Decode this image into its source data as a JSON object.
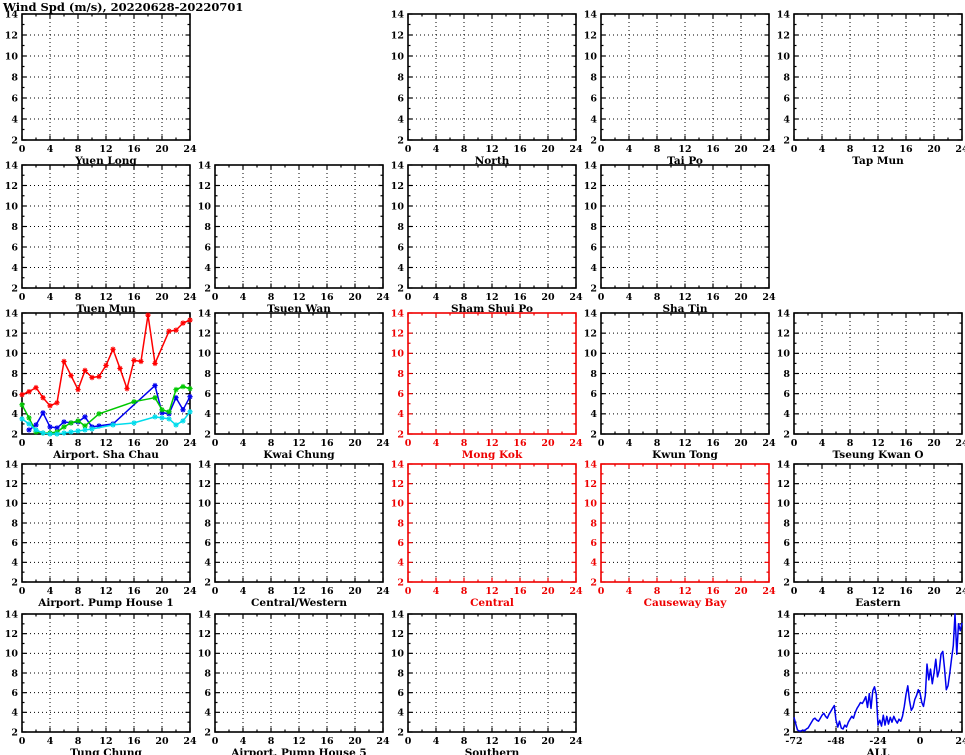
{
  "page_title": "Wind Spd (m/s), 20220628-20220701",
  "colors": {
    "background": "#ffffff",
    "axis_black": "#000000",
    "axis_red": "#ee0000",
    "grid": "#000000",
    "series_red": "#ff0000",
    "series_blue": "#0000ee",
    "series_green": "#00c800",
    "series_cyan": "#00dcec"
  },
  "chart_data": {
    "type": "line",
    "title": "Wind Spd (m/s), 20220628-20220701",
    "ylabel": "Wind Spd (m/s)",
    "date_range": "20220628-20220701",
    "ylim": [
      2,
      14
    ],
    "yticks": [
      2,
      4,
      6,
      8,
      10,
      12,
      14
    ],
    "y_minor_step": 1,
    "grid": "dotted",
    "legend": "none",
    "default_x": {
      "lim": [
        0,
        24
      ],
      "ticks": [
        0,
        4,
        8,
        12,
        16,
        20,
        24
      ],
      "minor_step": 2
    },
    "panels": [
      {
        "title": "Yuen Long",
        "col": 0,
        "row": 0,
        "axis_color": "black",
        "series": []
      },
      {
        "title": "North",
        "col": 2,
        "row": 0,
        "axis_color": "black",
        "series": []
      },
      {
        "title": "Tai Po",
        "col": 3,
        "row": 0,
        "axis_color": "black",
        "series": []
      },
      {
        "title": "Tap Mun",
        "col": 4,
        "row": 0,
        "axis_color": "black",
        "series": []
      },
      {
        "title": "Tuen Mun",
        "col": 0,
        "row": 1,
        "axis_color": "black",
        "series": []
      },
      {
        "title": "Tsuen Wan",
        "col": 1,
        "row": 1,
        "axis_color": "black",
        "series": []
      },
      {
        "title": "Sham Shui Po",
        "col": 2,
        "row": 1,
        "axis_color": "black",
        "series": []
      },
      {
        "title": "Sha Tin",
        "col": 3,
        "row": 1,
        "axis_color": "black",
        "series": []
      },
      {
        "title": "Airport. Sha Chau",
        "col": 0,
        "row": 2,
        "axis_color": "black",
        "series": [
          {
            "name": "red",
            "color_key": "series_red",
            "markers": true,
            "points": [
              [
                0,
                5.9
              ],
              [
                1,
                6.2
              ],
              [
                2,
                6.6
              ],
              [
                3,
                5.6
              ],
              [
                4,
                4.8
              ],
              [
                5,
                5.1
              ],
              [
                6,
                9.2
              ],
              [
                7,
                7.8
              ],
              [
                8,
                6.4
              ],
              [
                9,
                8.3
              ],
              [
                10,
                7.6
              ],
              [
                11,
                7.7
              ],
              [
                12,
                8.8
              ],
              [
                13,
                10.4
              ],
              [
                14,
                8.5
              ],
              [
                15,
                6.5
              ],
              [
                16,
                9.3
              ],
              [
                17,
                9.2
              ],
              [
                18,
                13.8
              ],
              [
                19,
                9.0
              ],
              [
                21,
                12.2
              ],
              [
                22,
                12.3
              ],
              [
                23,
                13.0
              ],
              [
                24,
                13.3
              ]
            ]
          },
          {
            "name": "blue",
            "color_key": "series_blue",
            "markers": true,
            "points": [
              [
                1,
                2.4
              ],
              [
                2,
                2.9
              ],
              [
                3,
                4.1
              ],
              [
                4,
                2.7
              ],
              [
                5,
                2.6
              ],
              [
                6,
                3.2
              ],
              [
                7,
                3.1
              ],
              [
                8,
                3.2
              ],
              [
                9,
                3.7
              ],
              [
                10,
                2.7
              ],
              [
                11,
                2.8
              ],
              [
                13,
                3.0
              ],
              [
                19,
                6.8
              ],
              [
                20,
                4.1
              ],
              [
                21,
                4.0
              ],
              [
                22,
                5.6
              ],
              [
                23,
                4.4
              ],
              [
                24,
                5.7
              ]
            ]
          },
          {
            "name": "green",
            "color_key": "series_green",
            "markers": true,
            "points": [
              [
                0,
                4.9
              ],
              [
                1,
                3.6
              ],
              [
                2,
                2.2
              ],
              [
                3,
                2.1
              ],
              [
                4,
                2.1
              ],
              [
                5,
                2.2
              ],
              [
                6,
                2.7
              ],
              [
                7,
                3.1
              ],
              [
                8,
                3.3
              ],
              [
                9,
                2.8
              ],
              [
                11,
                4.0
              ],
              [
                16,
                5.2
              ],
              [
                19,
                5.6
              ],
              [
                20,
                4.4
              ],
              [
                21,
                4.2
              ],
              [
                22,
                6.4
              ],
              [
                23,
                6.7
              ],
              [
                24,
                6.5
              ]
            ]
          },
          {
            "name": "cyan",
            "color_key": "series_cyan",
            "markers": true,
            "points": [
              [
                0,
                3.5
              ],
              [
                1,
                3.0
              ],
              [
                2,
                2.4
              ],
              [
                3,
                2.1
              ],
              [
                4,
                2.0
              ],
              [
                5,
                2.0
              ],
              [
                6,
                2.1
              ],
              [
                7,
                2.2
              ],
              [
                8,
                2.3
              ],
              [
                9,
                2.4
              ],
              [
                10,
                2.5
              ],
              [
                13,
                2.9
              ],
              [
                16,
                3.1
              ],
              [
                19,
                3.7
              ],
              [
                20,
                3.6
              ],
              [
                21,
                3.5
              ],
              [
                22,
                2.9
              ],
              [
                23,
                3.3
              ],
              [
                24,
                4.2
              ]
            ]
          }
        ]
      },
      {
        "title": "Kwai Chung",
        "col": 1,
        "row": 2,
        "axis_color": "black",
        "series": []
      },
      {
        "title": "Mong Kok",
        "col": 2,
        "row": 2,
        "axis_color": "red",
        "series": []
      },
      {
        "title": "Kwun Tong",
        "col": 3,
        "row": 2,
        "axis_color": "black",
        "series": []
      },
      {
        "title": "Tseung Kwan O",
        "col": 4,
        "row": 2,
        "axis_color": "black",
        "series": []
      },
      {
        "title": "Airport. Pump House 1",
        "col": 0,
        "row": 3,
        "axis_color": "black",
        "series": []
      },
      {
        "title": "Central/Western",
        "col": 1,
        "row": 3,
        "axis_color": "black",
        "series": []
      },
      {
        "title": "Central",
        "col": 2,
        "row": 3,
        "axis_color": "red",
        "series": []
      },
      {
        "title": "Causeway Bay",
        "col": 3,
        "row": 3,
        "axis_color": "red",
        "series": []
      },
      {
        "title": "Eastern",
        "col": 4,
        "row": 3,
        "axis_color": "black",
        "series": []
      },
      {
        "title": "Tung Chung",
        "col": 0,
        "row": 4,
        "axis_color": "black",
        "series": []
      },
      {
        "title": "Airport. Pump House 5",
        "col": 1,
        "row": 4,
        "axis_color": "black",
        "series": []
      },
      {
        "title": "Southern",
        "col": 2,
        "row": 4,
        "axis_color": "black",
        "series": []
      },
      {
        "title": "ALL",
        "col": 4,
        "row": 4,
        "axis_color": "black",
        "x": {
          "lim": [
            -72,
            24
          ],
          "ticks": [
            -72,
            -48,
            -24,
            0,
            24
          ],
          "minor_step": 6
        },
        "series": [
          {
            "name": "blue",
            "color_key": "series_blue",
            "markers": false,
            "points": [
              [
                -72,
                3.5
              ],
              [
                -71,
                2.8
              ],
              [
                -70,
                2.2
              ],
              [
                -69,
                2.1
              ],
              [
                -68,
                2.1
              ],
              [
                -67,
                2.2
              ],
              [
                -66,
                2.1
              ],
              [
                -65,
                2.3
              ],
              [
                -64,
                2.4
              ],
              [
                -63,
                2.7
              ],
              [
                -62,
                3.0
              ],
              [
                -61,
                3.3
              ],
              [
                -60,
                3.4
              ],
              [
                -59,
                3.2
              ],
              [
                -58,
                3.1
              ],
              [
                -57,
                3.4
              ],
              [
                -56,
                3.7
              ],
              [
                -55,
                3.9
              ],
              [
                -54,
                3.6
              ],
              [
                -53,
                3.4
              ],
              [
                -52,
                3.8
              ],
              [
                -51,
                4.1
              ],
              [
                -50,
                4.4
              ],
              [
                -49,
                4.7
              ],
              [
                -48,
                3.2
              ],
              [
                -47,
                2.5
              ],
              [
                -46,
                3.1
              ],
              [
                -45,
                2.4
              ],
              [
                -44,
                2.3
              ],
              [
                -43,
                2.7
              ],
              [
                -42,
                2.5
              ],
              [
                -41,
                3.0
              ],
              [
                -40,
                3.3
              ],
              [
                -39,
                3.6
              ],
              [
                -38,
                3.4
              ],
              [
                -37,
                4.0
              ],
              [
                -36,
                4.4
              ],
              [
                -35,
                4.7
              ],
              [
                -34,
                5.0
              ],
              [
                -33,
                4.9
              ],
              [
                -32,
                5.2
              ],
              [
                -31,
                5.6
              ],
              [
                -30,
                4.5
              ],
              [
                -29,
                5.9
              ],
              [
                -28,
                4.4
              ],
              [
                -27,
                6.2
              ],
              [
                -26,
                6.6
              ],
              [
                -25,
                5.8
              ],
              [
                -24,
                2.7
              ],
              [
                -23,
                3.2
              ],
              [
                -22,
                2.6
              ],
              [
                -21,
                3.7
              ],
              [
                -20,
                2.7
              ],
              [
                -19,
                3.6
              ],
              [
                -18,
                2.8
              ],
              [
                -17,
                3.5
              ],
              [
                -16,
                3.0
              ],
              [
                -15,
                3.6
              ],
              [
                -14,
                3.2
              ],
              [
                -13,
                2.9
              ],
              [
                -12,
                3.3
              ],
              [
                -11,
                3.1
              ],
              [
                -10,
                3.6
              ],
              [
                -9,
                4.6
              ],
              [
                -8,
                5.8
              ],
              [
                -7,
                6.7
              ],
              [
                -6,
                5.2
              ],
              [
                -5,
                4.2
              ],
              [
                -4,
                4.5
              ],
              [
                -3,
                5.3
              ],
              [
                -2,
                5.7
              ],
              [
                -1,
                6.3
              ],
              [
                0,
                6.0
              ],
              [
                1,
                5.0
              ],
              [
                2,
                4.6
              ],
              [
                3,
                5.7
              ],
              [
                4,
                8.9
              ],
              [
                5,
                7.3
              ],
              [
                6,
                8.4
              ],
              [
                7,
                6.9
              ],
              [
                8,
                8.0
              ],
              [
                9,
                9.4
              ],
              [
                10,
                7.6
              ],
              [
                11,
                8.3
              ],
              [
                12,
                9.9
              ],
              [
                13,
                10.2
              ],
              [
                14,
                8.5
              ],
              [
                15,
                6.3
              ],
              [
                16,
                6.7
              ],
              [
                17,
                8.0
              ],
              [
                18,
                9.4
              ],
              [
                19,
                10.8
              ],
              [
                20,
                14.0
              ],
              [
                21,
                9.9
              ],
              [
                22,
                13.0
              ],
              [
                23,
                12.3
              ],
              [
                24,
                13.1
              ]
            ]
          }
        ]
      }
    ]
  }
}
